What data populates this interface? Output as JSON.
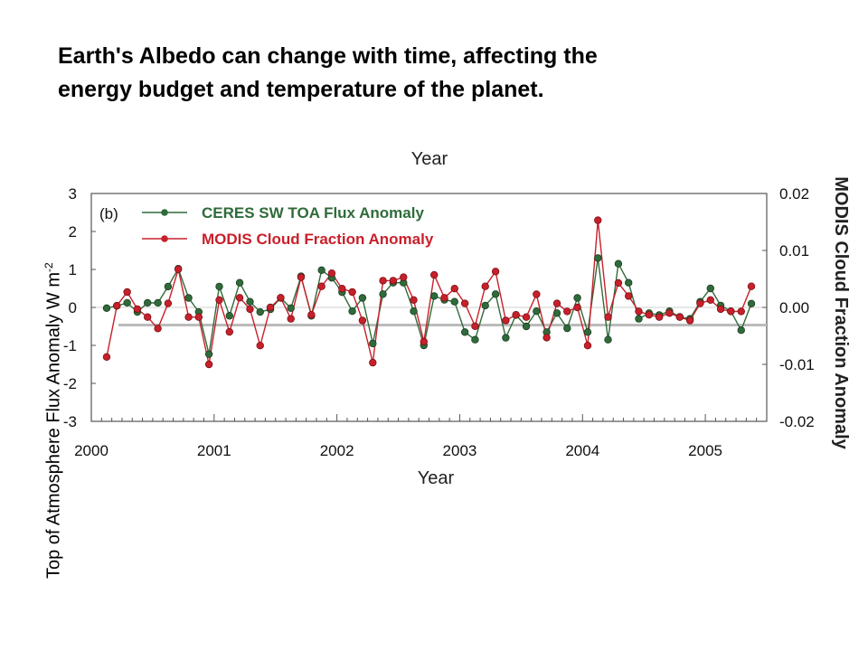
{
  "slide": {
    "title": "Earth's Albedo can change with time, affecting the\nenergy budget and temperature of the planet."
  },
  "colors": {
    "ceres": "#2f6b3a",
    "modis": "#c8202b",
    "frame": "#555555",
    "zero_band": "#bbbbbb"
  },
  "chart_data": {
    "type": "line",
    "panel_label": "(b)",
    "top_title_partial": "Year",
    "xlabel": "Year",
    "ylabel_left": "Top of Atmosphere Flux Anomaly W m",
    "ylabel_left_sup": "-2",
    "ylabel_right": "MODIS Cloud Fraction Anomaly",
    "xlim": [
      2000.0,
      2005.5
    ],
    "ylim_left": [
      -3,
      3
    ],
    "ylim_right": [
      -0.02,
      0.02
    ],
    "x_ticks": [
      "2000",
      "2001",
      "2002",
      "2003",
      "2004",
      "2005"
    ],
    "y_ticks_left": [
      "3",
      "2",
      "1",
      "0",
      "-1",
      "-2",
      "-3"
    ],
    "y_ticks_right": [
      "0.02",
      "0.01",
      "0.00",
      "-0.01",
      "-0.02"
    ],
    "legend_position": "top-left",
    "grid": false,
    "series": [
      {
        "name": "CERES SW TOA Flux Anomaly",
        "axis": "left",
        "x": [
          2000.125,
          2000.208,
          2000.292,
          2000.375,
          2000.458,
          2000.542,
          2000.625,
          2000.708,
          2000.792,
          2000.875,
          2000.958,
          2001.042,
          2001.125,
          2001.208,
          2001.292,
          2001.375,
          2001.458,
          2001.542,
          2001.625,
          2001.708,
          2001.792,
          2001.875,
          2001.958,
          2002.042,
          2002.125,
          2002.208,
          2002.292,
          2002.375,
          2002.458,
          2002.542,
          2002.625,
          2002.708,
          2002.792,
          2002.875,
          2002.958,
          2003.042,
          2003.125,
          2003.208,
          2003.292,
          2003.375,
          2003.458,
          2003.542,
          2003.625,
          2003.708,
          2003.792,
          2003.875,
          2003.958,
          2004.042,
          2004.125,
          2004.208,
          2004.292,
          2004.375,
          2004.458,
          2004.542,
          2004.625,
          2004.708,
          2004.792,
          2004.875,
          2004.958,
          2005.042,
          2005.125,
          2005.208,
          2005.292,
          2005.375
        ],
        "values": [
          -0.02,
          0.04,
          0.12,
          -0.12,
          0.12,
          0.12,
          0.55,
          1.02,
          0.25,
          -0.12,
          -1.23,
          0.55,
          -0.22,
          0.65,
          0.15,
          -0.12,
          -0.05,
          0.25,
          -0.02,
          0.82,
          -0.22,
          0.98,
          0.78,
          0.4,
          -0.1,
          0.25,
          -0.95,
          0.35,
          0.65,
          0.65,
          -0.1,
          -1.0,
          0.3,
          0.2,
          0.15,
          -0.65,
          -0.85,
          0.05,
          0.35,
          -0.8,
          -0.2,
          -0.5,
          -0.1,
          -0.65,
          -0.15,
          -0.55,
          0.25,
          -0.65,
          1.3,
          -0.85,
          1.15,
          0.65,
          -0.3,
          -0.15,
          -0.2,
          -0.1,
          -0.25,
          -0.3,
          0.15,
          0.5,
          0.05,
          -0.1,
          -0.6,
          0.1
        ]
      },
      {
        "name": "MODIS Cloud Fraction Anomaly",
        "axis": "right",
        "x": [
          2000.125,
          2000.208,
          2000.292,
          2000.375,
          2000.458,
          2000.542,
          2000.625,
          2000.708,
          2000.792,
          2000.875,
          2000.958,
          2001.042,
          2001.125,
          2001.208,
          2001.292,
          2001.375,
          2001.458,
          2001.542,
          2001.625,
          2001.708,
          2001.792,
          2001.875,
          2001.958,
          2002.042,
          2002.125,
          2002.208,
          2002.292,
          2002.375,
          2002.458,
          2002.542,
          2002.625,
          2002.708,
          2002.792,
          2002.875,
          2002.958,
          2003.042,
          2003.125,
          2003.208,
          2003.292,
          2003.375,
          2003.458,
          2003.542,
          2003.625,
          2003.708,
          2003.792,
          2003.875,
          2003.958,
          2004.042,
          2004.125,
          2004.208,
          2004.292,
          2004.375,
          2004.458,
          2004.542,
          2004.625,
          2004.708,
          2004.792,
          2004.875,
          2004.958,
          2005.042,
          2005.125,
          2005.208,
          2005.292,
          2005.375
        ],
        "values": [
          -0.0087,
          0.0003,
          0.0027,
          -0.0003,
          -0.0017,
          -0.0037,
          0.0007,
          0.0067,
          -0.0017,
          -0.0017,
          -0.01,
          0.0013,
          -0.0043,
          0.0017,
          -0.0003,
          -0.0067,
          0.0,
          0.0017,
          -0.002,
          0.0053,
          -0.0013,
          0.0037,
          0.006,
          0.0033,
          0.0027,
          -0.0023,
          -0.0097,
          0.0047,
          0.0047,
          0.0053,
          0.0013,
          -0.006,
          0.0057,
          0.0017,
          0.0033,
          0.0007,
          -0.0033,
          0.0037,
          0.0063,
          -0.0023,
          -0.0013,
          -0.0017,
          0.0023,
          -0.0053,
          0.0007,
          -0.0007,
          0.0,
          -0.0067,
          0.0153,
          -0.0017,
          0.0043,
          0.002,
          -0.0007,
          -0.0013,
          -0.0017,
          -0.001,
          -0.0017,
          -0.0023,
          0.0007,
          0.0013,
          -0.0003,
          -0.0007,
          -0.0007,
          0.0037
        ]
      }
    ]
  }
}
